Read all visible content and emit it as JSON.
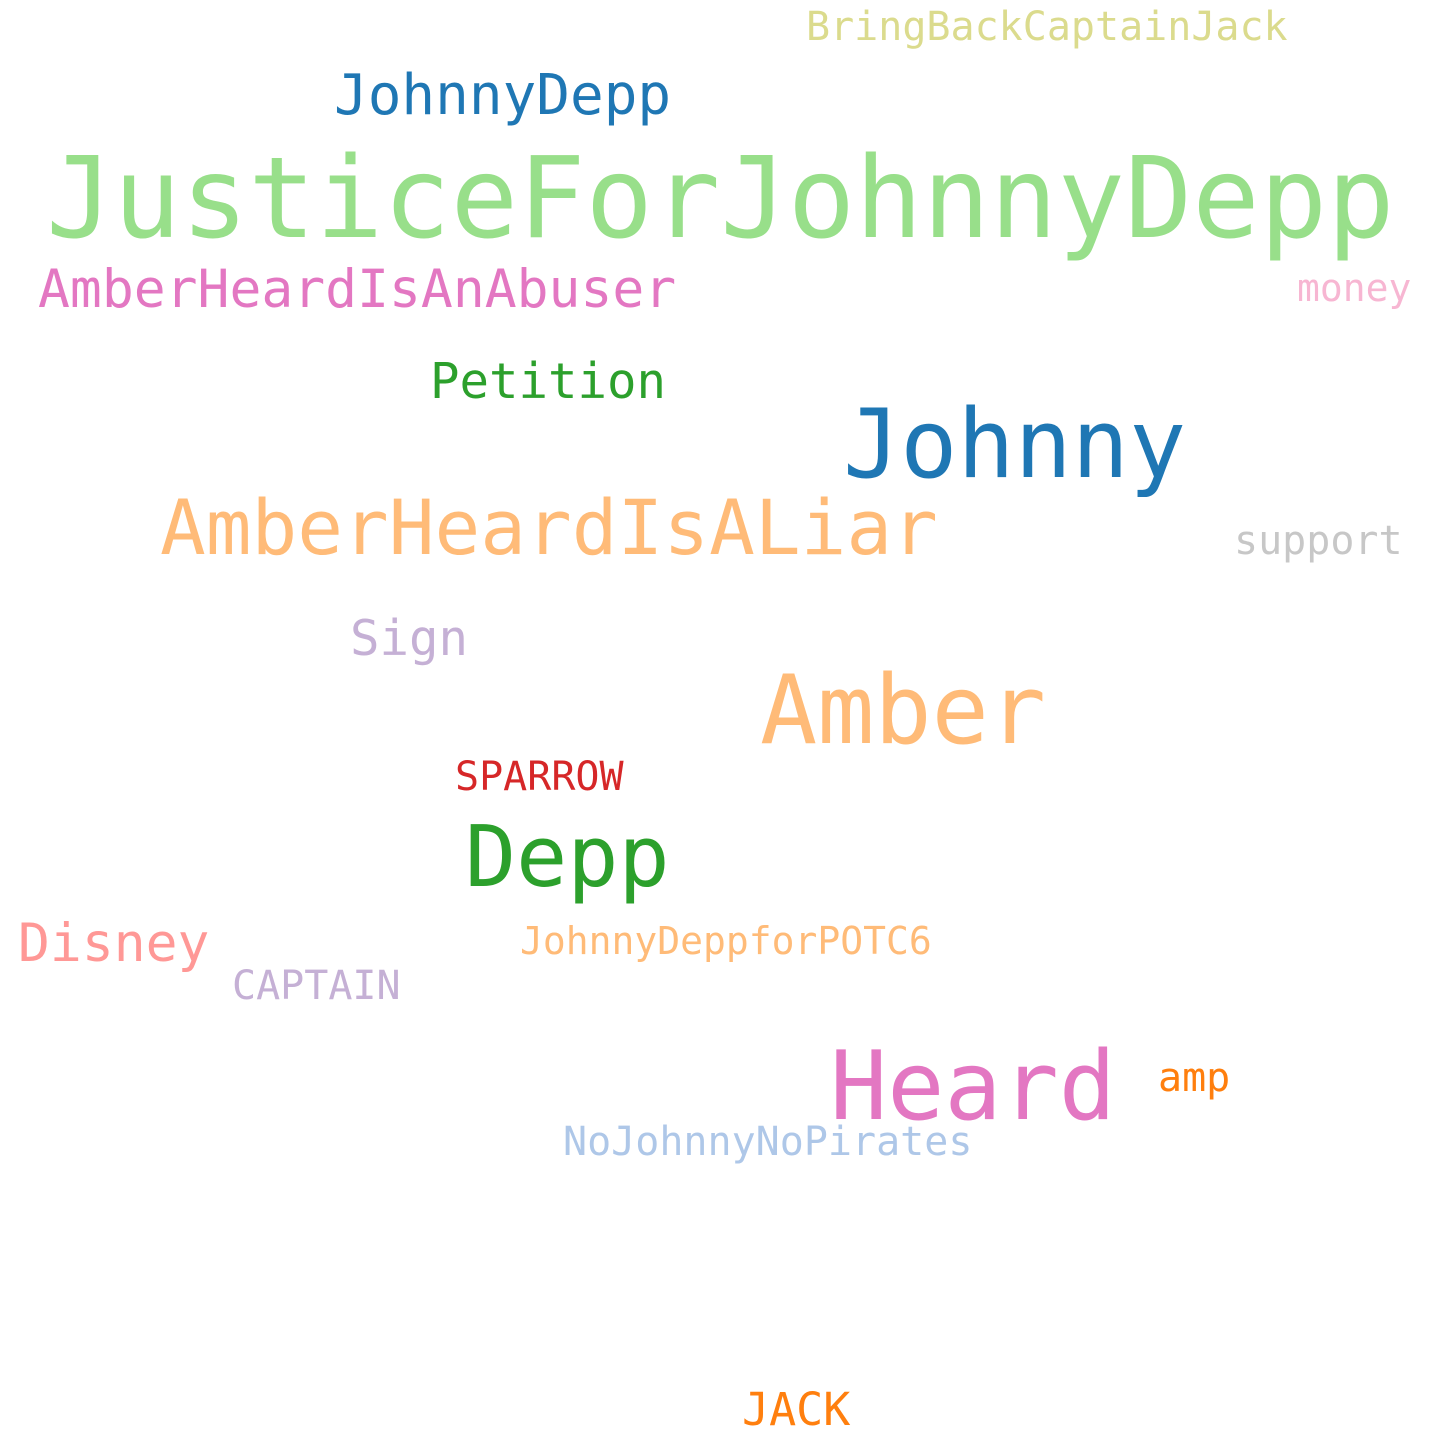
{
  "words": [
    {
      "id": "justice",
      "text": "JusticeForJohnnyDepp",
      "color": "#98df8a"
    },
    {
      "id": "johnny",
      "text": "Johnny",
      "color": "#1f77b4"
    },
    {
      "id": "amber",
      "text": "Amber",
      "color": "#ffbb78"
    },
    {
      "id": "heard",
      "text": "Heard",
      "color": "#e377c2"
    },
    {
      "id": "depp",
      "text": "Depp",
      "color": "#2ca02c"
    },
    {
      "id": "liar",
      "text": "AmberHeardIsALiar",
      "color": "#ffbb78"
    },
    {
      "id": "johnnydepp",
      "text": "JohnnyDepp",
      "color": "#1f77b4"
    },
    {
      "id": "abuser",
      "text": "AmberHeardIsAnAbuser",
      "color": "#e377c2"
    },
    {
      "id": "petition",
      "text": "Petition",
      "color": "#2ca02c"
    },
    {
      "id": "disney",
      "text": "Disney",
      "color": "#ff9896"
    },
    {
      "id": "sign",
      "text": "Sign",
      "color": "#c5b0d5"
    },
    {
      "id": "potc6",
      "text": "JohnnyDeppforPOTC6",
      "color": "#ffbb78"
    },
    {
      "id": "captain",
      "text": "CAPTAIN",
      "color": "#c5b0d5"
    },
    {
      "id": "sparrow",
      "text": "SPARROW",
      "color": "#d62728"
    },
    {
      "id": "nojohnny",
      "text": "NoJohnnyNoPirates",
      "color": "#aec7e8"
    },
    {
      "id": "bringback",
      "text": "BringBackCaptainJack",
      "color": "#dbdb8d"
    },
    {
      "id": "money",
      "text": "money",
      "color": "#f7b6d2"
    },
    {
      "id": "support",
      "text": "support",
      "color": "#c7c7c7"
    },
    {
      "id": "amp",
      "text": "amp",
      "color": "#ff7f0e"
    },
    {
      "id": "jack",
      "text": "JACK",
      "color": "#ff7f0e"
    }
  ]
}
